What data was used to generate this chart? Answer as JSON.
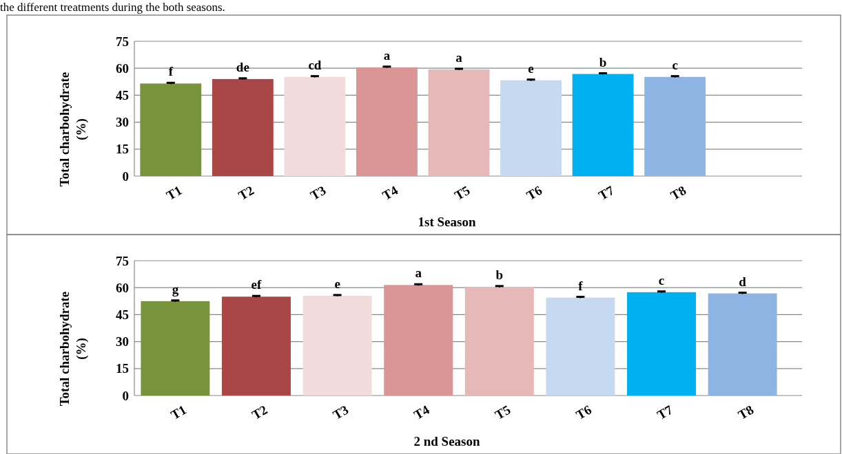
{
  "chart_data": [
    {
      "type": "bar",
      "annotations": [
        "the different treatments during the both seasons."
      ],
      "xlabel": "1st Season",
      "ylabel": "Total charbohydrate (%)",
      "categories": [
        "T1",
        "T2",
        "T3",
        "T4",
        "T5",
        "T6",
        "T7",
        "T8",
        null
      ],
      "values": [
        51.5,
        54,
        55.2,
        60.5,
        59.3,
        53.3,
        56.8,
        55.2,
        null
      ],
      "colors": [
        "#77933c",
        "#a84745",
        "#f2dcdb",
        "#d99694",
        "#e6b9b8",
        "#c6d9f1",
        "#00b0f0",
        "#8eb4e3",
        null
      ],
      "errors": [
        0.4,
        0.4,
        0.4,
        0.4,
        0.4,
        0.4,
        0.4,
        0.4,
        null
      ],
      "value_labels": [
        "f",
        "de",
        "cd",
        "a",
        "a",
        "e",
        "b",
        "c",
        null
      ],
      "ylim": [
        0,
        75
      ],
      "yticks": [
        0,
        15,
        30,
        45,
        60,
        75
      ],
      "grid": "y"
    },
    {
      "type": "bar",
      "xlabel": "2 nd Season",
      "ylabel": "Total  charbohydrate (%)",
      "categories": [
        "T1",
        "T2",
        "T3",
        "T4",
        "T5",
        "T6",
        "T7",
        "T8"
      ],
      "values": [
        52.5,
        55,
        55.5,
        61.5,
        60.5,
        54.5,
        57.5,
        56.8
      ],
      "colors": [
        "#77933c",
        "#a84745",
        "#f2dcdb",
        "#d99694",
        "#e6b9b8",
        "#c6d9f1",
        "#00b0f0",
        "#8eb4e3"
      ],
      "errors": [
        0.4,
        0.4,
        0.4,
        0.4,
        0.4,
        0.4,
        0.4,
        0.4
      ],
      "value_labels": [
        "g",
        "ef",
        "e",
        "a",
        "b",
        "f",
        "c",
        "d"
      ],
      "ylim": [
        0,
        75
      ],
      "yticks": [
        0,
        15,
        30,
        45,
        60,
        75
      ],
      "grid": "y"
    }
  ]
}
